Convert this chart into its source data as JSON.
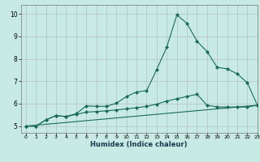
{
  "title": "",
  "xlabel": "Humidex (Indice chaleur)",
  "bg_color": "#c8eae4",
  "line_color": "#1a6b5a",
  "grid_color": "#b0b0b0",
  "xlim": [
    -0.5,
    23
  ],
  "ylim": [
    4.7,
    10.4
  ],
  "xticks": [
    0,
    1,
    2,
    3,
    4,
    5,
    6,
    7,
    8,
    9,
    10,
    11,
    12,
    13,
    14,
    15,
    16,
    17,
    18,
    19,
    20,
    21,
    22,
    23
  ],
  "yticks": [
    5,
    6,
    7,
    8,
    9,
    10
  ],
  "line1_x": [
    0,
    1,
    2,
    3,
    4,
    5,
    6,
    7,
    8,
    9,
    10,
    11,
    12,
    13,
    14,
    15,
    16,
    17,
    18,
    19,
    20,
    21,
    22,
    23
  ],
  "line1_y": [
    5.0,
    5.0,
    5.28,
    5.47,
    5.43,
    5.55,
    5.9,
    5.88,
    5.88,
    6.02,
    6.32,
    6.52,
    6.58,
    7.52,
    8.52,
    9.95,
    9.58,
    8.78,
    8.32,
    7.62,
    7.55,
    7.33,
    6.93,
    5.93
  ],
  "line2_x": [
    0,
    1,
    2,
    3,
    4,
    5,
    6,
    7,
    8,
    9,
    10,
    11,
    12,
    13,
    14,
    15,
    16,
    17,
    18,
    19,
    20,
    21,
    22,
    23
  ],
  "line2_y": [
    5.0,
    5.0,
    5.28,
    5.47,
    5.42,
    5.52,
    5.62,
    5.65,
    5.68,
    5.72,
    5.77,
    5.82,
    5.88,
    5.98,
    6.12,
    6.22,
    6.32,
    6.42,
    5.93,
    5.85,
    5.85,
    5.85,
    5.85,
    5.93
  ],
  "line3_x": [
    0,
    23
  ],
  "line3_y": [
    5.0,
    5.93
  ]
}
